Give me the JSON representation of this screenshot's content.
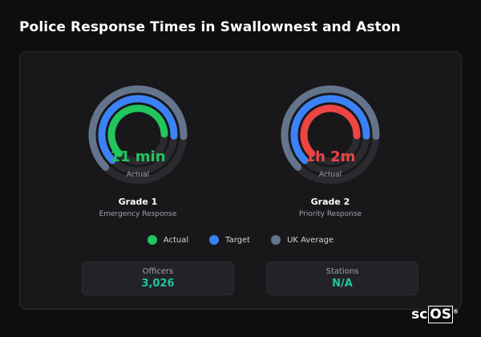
{
  "page": {
    "title": "Police Response Times in Swallownest and Aston"
  },
  "colors": {
    "actual": "#22c55e",
    "actual_over": "#ef4444",
    "target": "#3b82f6",
    "uk_average": "#64748b",
    "accent": "#1ec5a0"
  },
  "gauges": [
    {
      "value": "11 min",
      "value_label": "Actual",
      "title": "Grade 1",
      "subtitle": "Emergency Response",
      "actual_color": "#22c55e",
      "actual_fraction": 0.62,
      "target_fraction": 0.63,
      "uk_fraction": 0.63
    },
    {
      "value": "1h 2m",
      "value_label": "Actual",
      "title": "Grade 2",
      "subtitle": "Priority Response",
      "actual_color": "#ef4444",
      "actual_fraction": 0.63,
      "target_fraction": 0.63,
      "uk_fraction": 0.63
    }
  ],
  "legend": [
    {
      "label": "Actual",
      "color": "#22c55e"
    },
    {
      "label": "Target",
      "color": "#3b82f6"
    },
    {
      "label": "UK Average",
      "color": "#64748b"
    }
  ],
  "stats": [
    {
      "label": "Officers",
      "value": "3,026"
    },
    {
      "label": "Stations",
      "value": "N/A"
    }
  ],
  "logo": {
    "text_a": "sc",
    "text_b": "OS",
    "mark": "®"
  }
}
